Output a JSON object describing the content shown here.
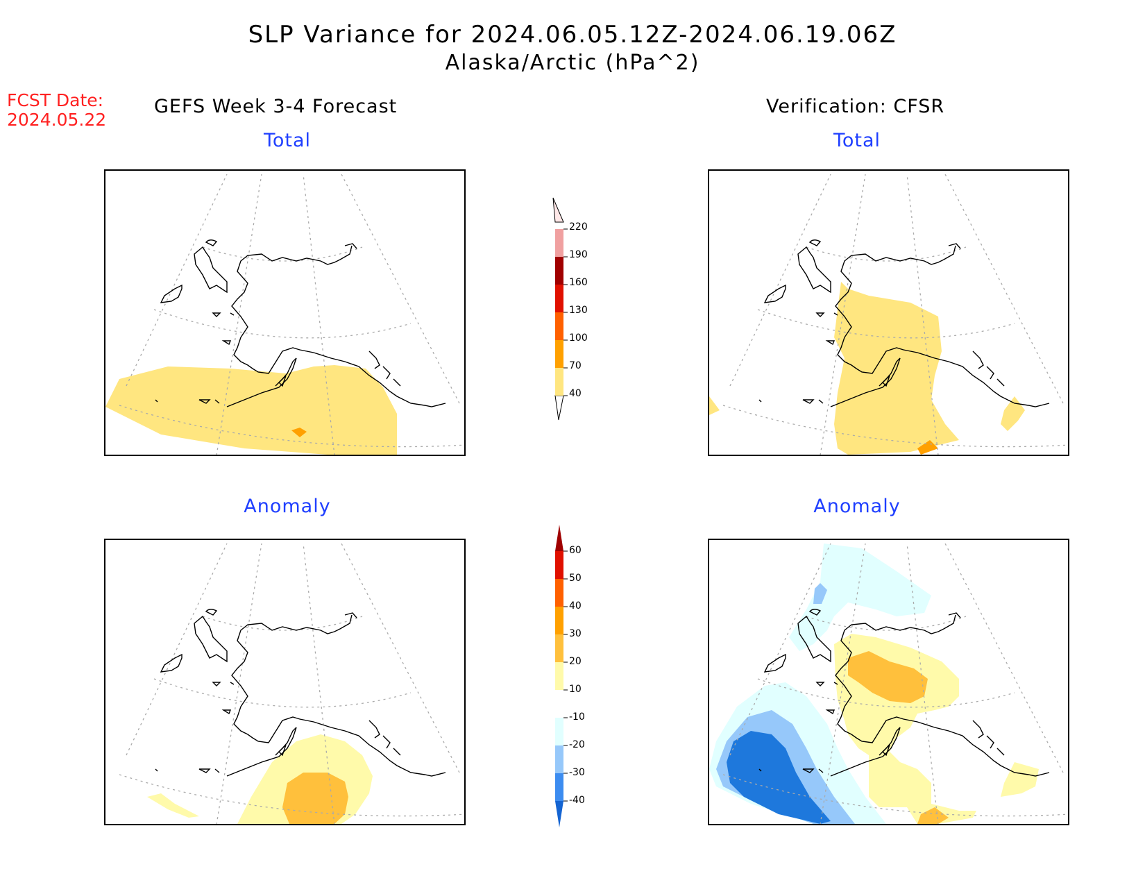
{
  "title_line1": "SLP Variance for 2024.06.05.12Z-2024.06.19.06Z",
  "title_line2": "Alaska/Arctic (hPa^2)",
  "fcst_label": "FCST Date:",
  "fcst_date": "2024.05.22",
  "left_column_title": "GEFS Week 3-4 Forecast",
  "right_column_title": "Verification: CFSR",
  "panels": {
    "forecast_total": "Total",
    "forecast_anomaly": "Anomaly",
    "verif_total": "Total",
    "verif_anomaly": "Anomaly"
  },
  "total_colorbar": {
    "labels": [
      "40",
      "70",
      "100",
      "130",
      "160",
      "190",
      "220"
    ],
    "colors": [
      "#ffe680",
      "#ffa000",
      "#ff6000",
      "#e01000",
      "#a00000",
      "#f0a0a0",
      "#ffe8e8"
    ]
  },
  "anomaly_colorbar": {
    "labels": [
      "-40",
      "-30",
      "-20",
      "-10",
      "10",
      "20",
      "30",
      "40",
      "50",
      "60"
    ],
    "colors": [
      "#1464d2",
      "#3c8cf0",
      "#96c8fa",
      "#e1ffff",
      "#ffffff",
      "#fffaaa",
      "#ffc03c",
      "#ffa000",
      "#ff6000",
      "#e01000",
      "#a00000"
    ]
  },
  "colors": {
    "title_red": "#ff2020",
    "panel_blue": "#1f3fff"
  }
}
